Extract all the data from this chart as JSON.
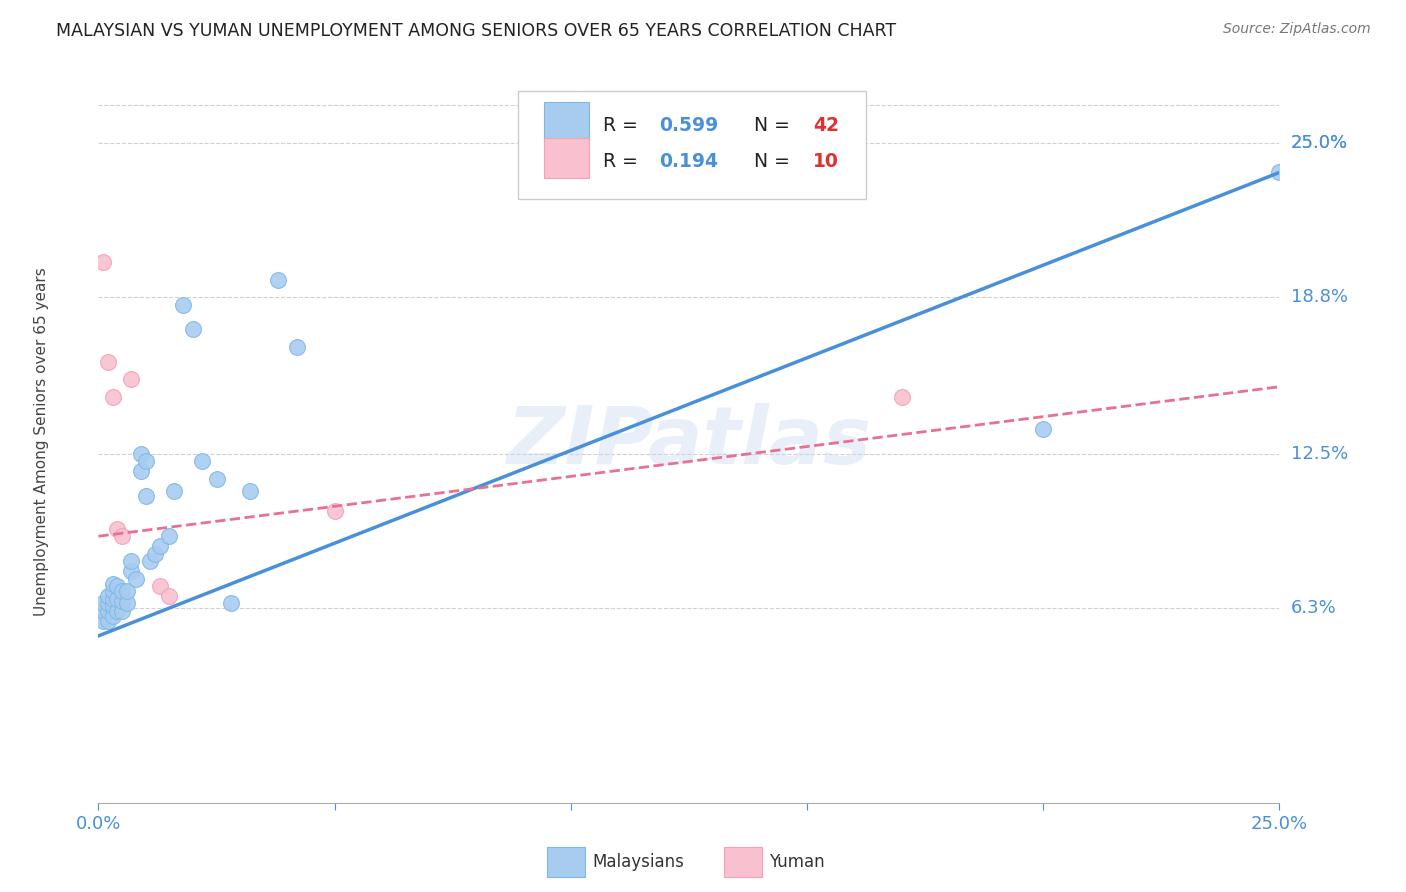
{
  "title": "MALAYSIAN VS YUMAN UNEMPLOYMENT AMONG SENIORS OVER 65 YEARS CORRELATION CHART",
  "source": "Source: ZipAtlas.com",
  "ylabel": "Unemployment Among Seniors over 65 years",
  "xlim": [
    0.0,
    0.25
  ],
  "ylim": [
    -0.015,
    0.275
  ],
  "ytick_positions": [
    0.063,
    0.125,
    0.188,
    0.25
  ],
  "ytick_labels": [
    "6.3%",
    "12.5%",
    "18.8%",
    "25.0%"
  ],
  "watermark": "ZIPatlas",
  "blue_scatter_color": "#A8CCF0",
  "blue_scatter_edge": "#7EB8E8",
  "pink_scatter_color": "#F9C0CF",
  "pink_scatter_edge": "#F4A0B5",
  "blue_line_color": "#4A90D9",
  "pink_line_color": "#E87090",
  "malaysians_x": [
    0.001,
    0.001,
    0.001,
    0.002,
    0.002,
    0.002,
    0.002,
    0.003,
    0.003,
    0.003,
    0.003,
    0.003,
    0.004,
    0.004,
    0.004,
    0.005,
    0.005,
    0.005,
    0.006,
    0.006,
    0.007,
    0.007,
    0.008,
    0.009,
    0.009,
    0.01,
    0.01,
    0.011,
    0.012,
    0.013,
    0.015,
    0.016,
    0.018,
    0.02,
    0.022,
    0.025,
    0.028,
    0.032,
    0.038,
    0.042,
    0.2,
    0.25
  ],
  "malaysians_y": [
    0.058,
    0.062,
    0.065,
    0.058,
    0.062,
    0.065,
    0.068,
    0.06,
    0.064,
    0.067,
    0.07,
    0.073,
    0.062,
    0.067,
    0.072,
    0.062,
    0.066,
    0.07,
    0.065,
    0.07,
    0.078,
    0.082,
    0.075,
    0.118,
    0.125,
    0.108,
    0.122,
    0.082,
    0.085,
    0.088,
    0.092,
    0.11,
    0.185,
    0.175,
    0.122,
    0.115,
    0.065,
    0.11,
    0.195,
    0.168,
    0.135,
    0.238
  ],
  "yuman_x": [
    0.001,
    0.002,
    0.003,
    0.004,
    0.005,
    0.007,
    0.013,
    0.015,
    0.05,
    0.17
  ],
  "yuman_y": [
    0.202,
    0.162,
    0.148,
    0.095,
    0.092,
    0.155,
    0.072,
    0.068,
    0.102,
    0.148
  ],
  "blue_line_x0": 0.0,
  "blue_line_y0": 0.052,
  "blue_line_x1": 0.25,
  "blue_line_y1": 0.238,
  "pink_line_x0": 0.0,
  "pink_line_y0": 0.092,
  "pink_line_x1": 0.25,
  "pink_line_y1": 0.152,
  "background_color": "#FFFFFF",
  "grid_color": "#CCCCCC"
}
